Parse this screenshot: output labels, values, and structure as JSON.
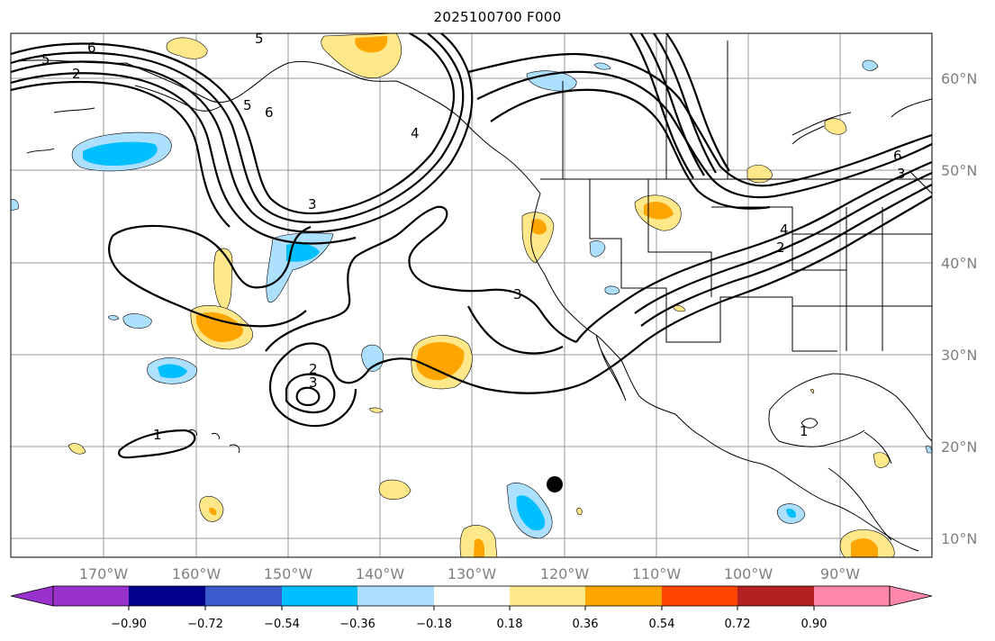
{
  "title": "2025100700 F000",
  "map": {
    "lat_labels": [
      "60°N",
      "50°N",
      "40°N",
      "30°N",
      "20°N",
      "10°N"
    ],
    "lon_labels": [
      "170°W",
      "160°W",
      "150°W",
      "140°W",
      "130°W",
      "120°W",
      "110°W",
      "100°W",
      "90°W"
    ],
    "contour_labels": [
      "5",
      "6",
      "5",
      "2",
      "6",
      "5",
      "3",
      "4",
      "3",
      "2",
      "3",
      "1",
      "1",
      "6",
      "3",
      "4",
      "2"
    ],
    "marker": "storm-position-marker"
  },
  "colorbar": {
    "colors": [
      "#9932CC",
      "#00008B",
      "#3A5BCC",
      "#00BFFF",
      "#ADDFFF",
      "#FFFFFF",
      "#FFE88A",
      "#FFA500",
      "#FF4500",
      "#B22222",
      "#FF88AA"
    ],
    "ticks": [
      "−0.90",
      "−0.72",
      "−0.54",
      "−0.36",
      "−0.18",
      "0.18",
      "0.36",
      "0.54",
      "0.72",
      "0.90"
    ]
  }
}
